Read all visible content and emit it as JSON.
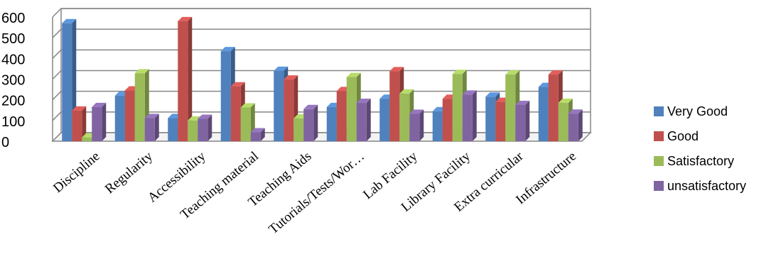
{
  "chart_data": {
    "type": "bar",
    "title": "",
    "xlabel": "",
    "ylabel": "",
    "ylim": [
      0,
      600
    ],
    "yticks": [
      "0",
      "100",
      "200",
      "300",
      "400",
      "500",
      "600"
    ],
    "grid": "horizontal",
    "legend_position": "right",
    "categories": [
      "Discipline",
      "Regularity",
      "Accessibility",
      "Teaching material",
      "Teaching Aids",
      "Tutorials/Tests/Wor…",
      "Lab Facility",
      "Library Facility",
      "Extra curricular",
      "Infrastructure"
    ],
    "series": [
      {
        "name": "Very Good",
        "color": "#4f81bd",
        "values": [
          570,
          220,
          112,
          435,
          340,
          165,
          205,
          145,
          215,
          262
        ]
      },
      {
        "name": "Good",
        "color": "#c0504d",
        "values": [
          148,
          245,
          580,
          265,
          298,
          242,
          338,
          205,
          190,
          322
        ]
      },
      {
        "name": "Satisfactory",
        "color": "#9bbb59",
        "values": [
          18,
          328,
          100,
          163,
          110,
          310,
          230,
          325,
          322,
          185
        ]
      },
      {
        "name": "unsatisfactory",
        "color": "#8064a2",
        "values": [
          165,
          112,
          108,
          43,
          155,
          185,
          132,
          225,
          175,
          133
        ]
      }
    ]
  }
}
